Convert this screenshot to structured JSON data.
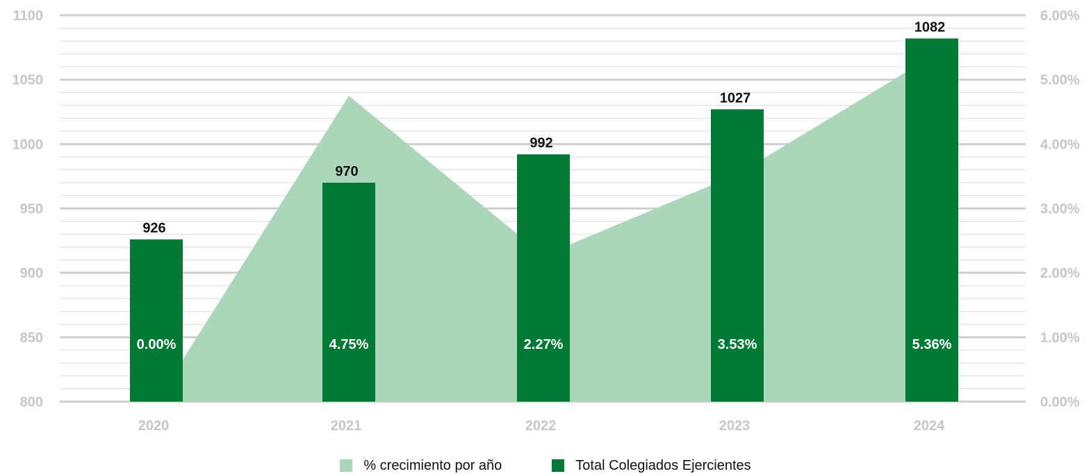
{
  "chart_data": {
    "type": "bar",
    "categories": [
      "2020",
      "2021",
      "2022",
      "2023",
      "2024"
    ],
    "series": [
      {
        "name": "Total Colegiados Ejercientes",
        "type": "bar",
        "axis": "left",
        "values": [
          926,
          970,
          992,
          1027,
          1082
        ],
        "labels": [
          "926",
          "970",
          "992",
          "1027",
          "1082"
        ],
        "color": "#007934"
      },
      {
        "name": "% crecimiento por año",
        "type": "area",
        "axis": "right",
        "values": [
          0.0,
          4.75,
          2.27,
          3.53,
          5.36
        ],
        "labels": [
          "0.00%",
          "4.75%",
          "2.27%",
          "3.53%",
          "5.36%"
        ],
        "color": "#acd6ba"
      }
    ],
    "y_left": {
      "min": 800,
      "max": 1100,
      "ticks": [
        "1100",
        "1050",
        "1000",
        "950",
        "900",
        "850",
        "800"
      ]
    },
    "y_right": {
      "min": 0,
      "max": 6,
      "ticks": [
        "6.00%",
        "5.00%",
        "4.00%",
        "3.00%",
        "2.00%",
        "1.00%",
        "0.00%"
      ]
    },
    "grid": true,
    "legend_position": "bottom-center"
  },
  "legend": {
    "area_label": "% crecimiento por año",
    "bar_label": "Total Colegiados Ejercientes"
  }
}
